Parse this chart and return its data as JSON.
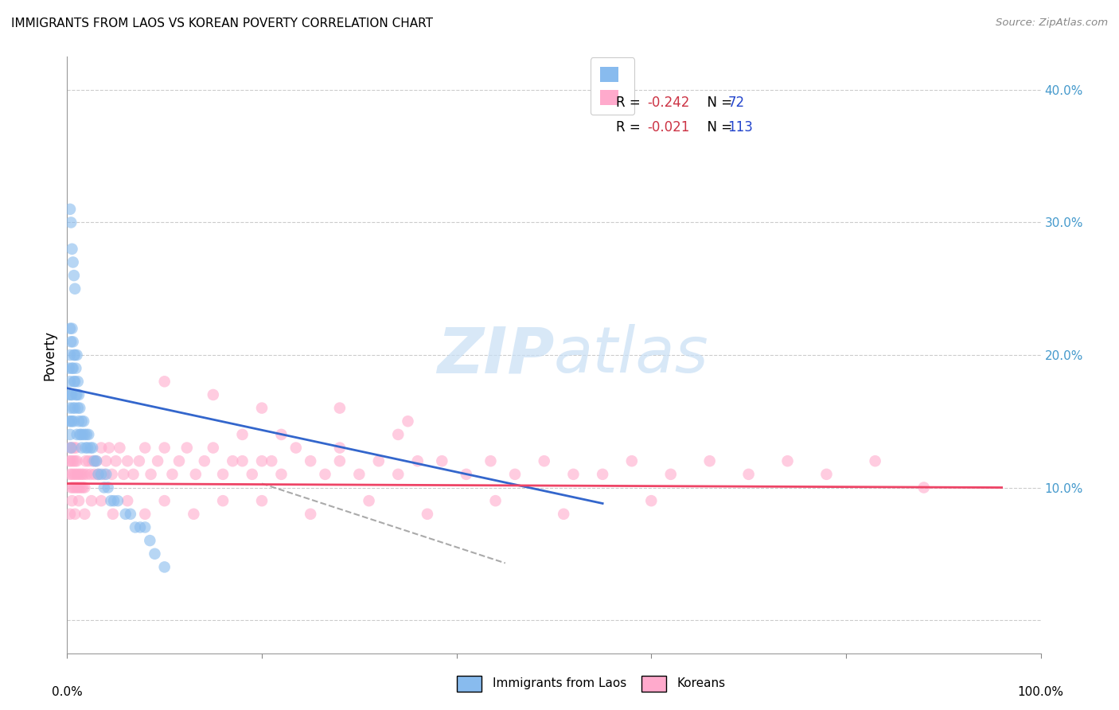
{
  "title": "IMMIGRANTS FROM LAOS VS KOREAN POVERTY CORRELATION CHART",
  "source": "Source: ZipAtlas.com",
  "ylabel": "Poverty",
  "yticks": [
    0.0,
    0.1,
    0.2,
    0.3,
    0.4
  ],
  "ytick_labels": [
    "",
    "10.0%",
    "20.0%",
    "30.0%",
    "40.0%"
  ],
  "xlim": [
    0.0,
    1.0
  ],
  "ylim": [
    -0.025,
    0.425
  ],
  "watermark_zip": "ZIP",
  "watermark_atlas": "atlas",
  "legend_r1": "-0.242",
  "legend_n1": "72",
  "legend_r2": "-0.021",
  "legend_n2": "113",
  "legend_label1": "Immigrants from Laos",
  "legend_label2": "Koreans",
  "color_blue": "#88bbee",
  "color_pink": "#ffaacc",
  "color_blue_line": "#3366cc",
  "color_pink_line": "#ee4466",
  "color_gray": "#aaaaaa",
  "laos_x": [
    0.002,
    0.002,
    0.002,
    0.003,
    0.003,
    0.003,
    0.003,
    0.003,
    0.004,
    0.004,
    0.004,
    0.004,
    0.005,
    0.005,
    0.005,
    0.005,
    0.006,
    0.006,
    0.006,
    0.007,
    0.007,
    0.007,
    0.008,
    0.008,
    0.008,
    0.009,
    0.009,
    0.01,
    0.01,
    0.01,
    0.011,
    0.011,
    0.012,
    0.012,
    0.013,
    0.013,
    0.014,
    0.015,
    0.015,
    0.016,
    0.017,
    0.018,
    0.019,
    0.02,
    0.021,
    0.022,
    0.024,
    0.026,
    0.028,
    0.03,
    0.032,
    0.035,
    0.038,
    0.04,
    0.042,
    0.045,
    0.048,
    0.052,
    0.06,
    0.065,
    0.07,
    0.075,
    0.08,
    0.085,
    0.09,
    0.1,
    0.003,
    0.004,
    0.005,
    0.006,
    0.007,
    0.008
  ],
  "laos_y": [
    0.15,
    0.17,
    0.19,
    0.14,
    0.16,
    0.18,
    0.2,
    0.22,
    0.13,
    0.15,
    0.17,
    0.21,
    0.15,
    0.17,
    0.19,
    0.22,
    0.16,
    0.19,
    0.21,
    0.15,
    0.18,
    0.2,
    0.16,
    0.18,
    0.2,
    0.17,
    0.19,
    0.14,
    0.17,
    0.2,
    0.16,
    0.18,
    0.15,
    0.17,
    0.14,
    0.16,
    0.14,
    0.13,
    0.15,
    0.14,
    0.15,
    0.14,
    0.13,
    0.14,
    0.13,
    0.14,
    0.13,
    0.13,
    0.12,
    0.12,
    0.11,
    0.11,
    0.1,
    0.11,
    0.1,
    0.09,
    0.09,
    0.09,
    0.08,
    0.08,
    0.07,
    0.07,
    0.07,
    0.06,
    0.05,
    0.04,
    0.31,
    0.3,
    0.28,
    0.27,
    0.26,
    0.25
  ],
  "korean_x": [
    0.002,
    0.003,
    0.003,
    0.004,
    0.004,
    0.005,
    0.005,
    0.006,
    0.006,
    0.007,
    0.007,
    0.008,
    0.008,
    0.009,
    0.009,
    0.01,
    0.01,
    0.011,
    0.012,
    0.013,
    0.014,
    0.015,
    0.016,
    0.017,
    0.018,
    0.019,
    0.02,
    0.022,
    0.024,
    0.026,
    0.028,
    0.03,
    0.032,
    0.035,
    0.038,
    0.04,
    0.043,
    0.046,
    0.05,
    0.054,
    0.058,
    0.062,
    0.068,
    0.074,
    0.08,
    0.086,
    0.093,
    0.1,
    0.108,
    0.115,
    0.123,
    0.132,
    0.141,
    0.15,
    0.16,
    0.17,
    0.18,
    0.19,
    0.2,
    0.21,
    0.22,
    0.235,
    0.25,
    0.265,
    0.28,
    0.3,
    0.32,
    0.34,
    0.36,
    0.385,
    0.41,
    0.435,
    0.46,
    0.49,
    0.52,
    0.55,
    0.58,
    0.62,
    0.66,
    0.7,
    0.74,
    0.78,
    0.83,
    0.88,
    0.003,
    0.005,
    0.008,
    0.012,
    0.018,
    0.025,
    0.035,
    0.047,
    0.062,
    0.08,
    0.1,
    0.13,
    0.16,
    0.2,
    0.25,
    0.31,
    0.37,
    0.44,
    0.51,
    0.6,
    0.1,
    0.15,
    0.2,
    0.28,
    0.35,
    0.18,
    0.22,
    0.28,
    0.34
  ],
  "korean_y": [
    0.12,
    0.11,
    0.13,
    0.1,
    0.12,
    0.11,
    0.13,
    0.1,
    0.12,
    0.11,
    0.13,
    0.1,
    0.12,
    0.11,
    0.13,
    0.1,
    0.12,
    0.11,
    0.1,
    0.11,
    0.1,
    0.11,
    0.1,
    0.11,
    0.1,
    0.12,
    0.11,
    0.12,
    0.11,
    0.12,
    0.11,
    0.12,
    0.11,
    0.13,
    0.11,
    0.12,
    0.13,
    0.11,
    0.12,
    0.13,
    0.11,
    0.12,
    0.11,
    0.12,
    0.13,
    0.11,
    0.12,
    0.13,
    0.11,
    0.12,
    0.13,
    0.11,
    0.12,
    0.13,
    0.11,
    0.12,
    0.12,
    0.11,
    0.12,
    0.12,
    0.11,
    0.13,
    0.12,
    0.11,
    0.12,
    0.11,
    0.12,
    0.11,
    0.12,
    0.12,
    0.11,
    0.12,
    0.11,
    0.12,
    0.11,
    0.11,
    0.12,
    0.11,
    0.12,
    0.11,
    0.12,
    0.11,
    0.12,
    0.1,
    0.08,
    0.09,
    0.08,
    0.09,
    0.08,
    0.09,
    0.09,
    0.08,
    0.09,
    0.08,
    0.09,
    0.08,
    0.09,
    0.09,
    0.08,
    0.09,
    0.08,
    0.09,
    0.08,
    0.09,
    0.18,
    0.17,
    0.16,
    0.16,
    0.15,
    0.14,
    0.14,
    0.13,
    0.14
  ],
  "blue_line_x": [
    0.0,
    0.55
  ],
  "blue_line_y": [
    0.175,
    0.088
  ],
  "gray_line_x": [
    0.2,
    0.45
  ],
  "gray_line_y": [
    0.103,
    0.043
  ],
  "pink_line_x": [
    0.0,
    0.96
  ],
  "pink_line_y": [
    0.103,
    0.1
  ]
}
